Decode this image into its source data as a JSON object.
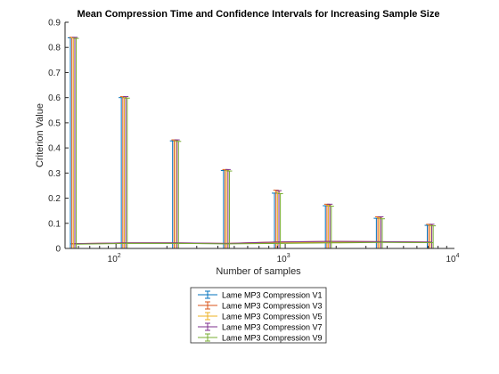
{
  "chart_data": {
    "type": "line",
    "title": "Mean Compression Time and Confidence Intervals for Increasing Sample Size",
    "xlabel": "Number of samples",
    "ylabel": "Criterion Value",
    "x_scale": "log",
    "xlim": [
      50,
      10000
    ],
    "ylim": [
      0,
      0.9
    ],
    "x_ticks": [
      {
        "value": 100,
        "base": "10",
        "exp": "2"
      },
      {
        "value": 1000,
        "base": "10",
        "exp": "3"
      },
      {
        "value": 10000,
        "base": "10",
        "exp": "4"
      }
    ],
    "y_ticks": [
      "0",
      "0.1",
      "0.2",
      "0.3",
      "0.4",
      "0.5",
      "0.6",
      "0.7",
      "0.8",
      "0.9"
    ],
    "grid": false,
    "legend_position": "below-center",
    "samples": [
      56,
      112,
      225,
      450,
      900,
      1800,
      3600,
      7200
    ],
    "offsets": [
      0.96,
      0.98,
      1.0,
      1.02,
      1.04
    ],
    "series": [
      {
        "name": "Lame MP3 Compression V1",
        "color": "#0072BD",
        "values": [
          0.018,
          0.021,
          0.02,
          0.019,
          0.021,
          0.023,
          0.025,
          0.024
        ],
        "upper": [
          0.838,
          0.6,
          0.428,
          0.31,
          0.22,
          0.17,
          0.12,
          0.092
        ]
      },
      {
        "name": "Lame MP3 Compression V3",
        "color": "#D95319",
        "values": [
          0.019,
          0.022,
          0.022,
          0.02,
          0.026,
          0.028,
          0.027,
          0.025
        ],
        "upper": [
          0.84,
          0.604,
          0.432,
          0.314,
          0.232,
          0.176,
          0.126,
          0.096
        ]
      },
      {
        "name": "Lame MP3 Compression V5",
        "color": "#EDB120",
        "values": [
          0.018,
          0.021,
          0.021,
          0.019,
          0.022,
          0.024,
          0.025,
          0.024
        ],
        "upper": [
          0.838,
          0.602,
          0.43,
          0.312,
          0.224,
          0.172,
          0.122,
          0.094
        ]
      },
      {
        "name": "Lame MP3 Compression V7",
        "color": "#7E2F8E",
        "values": [
          0.019,
          0.022,
          0.022,
          0.02,
          0.026,
          0.028,
          0.027,
          0.025
        ],
        "upper": [
          0.84,
          0.604,
          0.432,
          0.314,
          0.23,
          0.176,
          0.126,
          0.096
        ]
      },
      {
        "name": "Lame MP3 Compression V9",
        "color": "#77AC30",
        "values": [
          0.017,
          0.02,
          0.02,
          0.018,
          0.02,
          0.022,
          0.024,
          0.023
        ],
        "upper": [
          0.836,
          0.598,
          0.426,
          0.308,
          0.218,
          0.168,
          0.118,
          0.09
        ]
      }
    ]
  }
}
